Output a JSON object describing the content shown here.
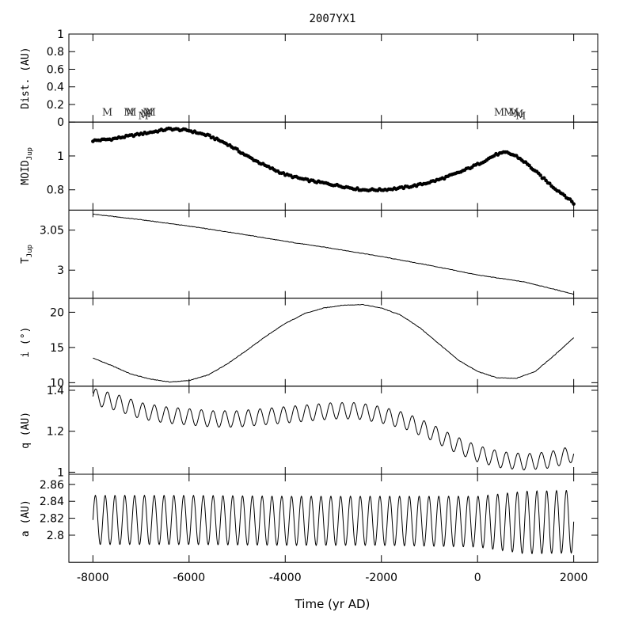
{
  "chart_data": {
    "type": "line",
    "title": "2007YX1",
    "xlabel": "Time (yr AD)",
    "xlim": [
      -8500,
      2500
    ],
    "x_ticks": [
      -8000,
      -6000,
      -4000,
      -2000,
      0,
      2000
    ],
    "x_tick_labels": [
      "-8000",
      "-6000",
      "-4000",
      "-2000",
      "0",
      "2000"
    ],
    "panels": [
      {
        "id": "dist",
        "ylabel": "Dist. (AU)",
        "ylim": [
          0,
          1
        ],
        "y_ticks": [
          0,
          0.2,
          0.4,
          0.6,
          0.8,
          1
        ],
        "y_tick_labels": [
          "0",
          "0.2",
          "0.4",
          "0.6",
          "0.8",
          "1"
        ],
        "marker_label": "M",
        "markers": [
          {
            "x": -7700,
            "y": 0.075
          },
          {
            "x": -7250,
            "y": 0.075
          },
          {
            "x": -7200,
            "y": 0.075
          },
          {
            "x": -6950,
            "y": 0.035
          },
          {
            "x": -6900,
            "y": 0.055
          },
          {
            "x": -6850,
            "y": 0.075
          },
          {
            "x": -6800,
            "y": 0.075
          },
          {
            "x": 450,
            "y": 0.075
          },
          {
            "x": 650,
            "y": 0.075
          },
          {
            "x": 750,
            "y": 0.075
          },
          {
            "x": 850,
            "y": 0.055
          },
          {
            "x": 900,
            "y": 0.035
          }
        ]
      },
      {
        "id": "moid",
        "ylabel": "MOID",
        "ylabel_sub": "Jup",
        "ylim": [
          0.68,
          1.2
        ],
        "y_ticks": [
          0.8,
          1
        ],
        "y_tick_labels": [
          "0.8",
          "1"
        ],
        "style": "dots",
        "x": [
          -8000,
          -7600,
          -7200,
          -6800,
          -6400,
          -6000,
          -5600,
          -5200,
          -4800,
          -4400,
          -4000,
          -3600,
          -3200,
          -2800,
          -2400,
          -2000,
          -1600,
          -1200,
          -800,
          -400,
          0,
          200,
          400,
          600,
          800,
          1000,
          1200,
          1400,
          1600,
          1800,
          2000
        ],
        "y": [
          1.09,
          1.1,
          1.12,
          1.14,
          1.16,
          1.15,
          1.12,
          1.07,
          1.0,
          0.94,
          0.89,
          0.86,
          0.84,
          0.82,
          0.8,
          0.8,
          0.81,
          0.83,
          0.86,
          0.9,
          0.95,
          0.98,
          1.01,
          1.02,
          1.0,
          0.96,
          0.91,
          0.86,
          0.81,
          0.77,
          0.72
        ]
      },
      {
        "id": "tjup",
        "ylabel": "T",
        "ylabel_sub": "Jup",
        "ylim": [
          2.965,
          3.075
        ],
        "y_ticks": [
          3,
          3.05
        ],
        "y_tick_labels": [
          "3",
          "3.05"
        ],
        "style": "line",
        "x": [
          -8000,
          -7000,
          -6000,
          -5000,
          -4000,
          -3000,
          -2000,
          -1000,
          0,
          1000,
          2000
        ],
        "y": [
          3.07,
          3.063,
          3.055,
          3.046,
          3.036,
          3.027,
          3.017,
          3.006,
          2.994,
          2.985,
          2.97
        ]
      },
      {
        "id": "incl",
        "ylabel": "i (°)",
        "ylim": [
          9.5,
          22
        ],
        "y_ticks": [
          10,
          15,
          20
        ],
        "y_tick_labels": [
          "10",
          "15",
          "20"
        ],
        "style": "line",
        "x": [
          -8000,
          -7600,
          -7200,
          -6800,
          -6400,
          -6000,
          -5600,
          -5200,
          -4800,
          -4400,
          -4000,
          -3600,
          -3200,
          -2800,
          -2400,
          -2000,
          -1600,
          -1200,
          -800,
          -400,
          0,
          400,
          800,
          1200,
          1600,
          2000
        ],
        "y": [
          13.5,
          12.4,
          11.2,
          10.5,
          10.1,
          10.3,
          11.1,
          12.7,
          14.6,
          16.6,
          18.4,
          19.8,
          20.6,
          21.0,
          21.1,
          20.6,
          19.6,
          17.8,
          15.5,
          13.2,
          11.6,
          10.7,
          10.6,
          11.6,
          13.9,
          16.4
        ]
      },
      {
        "id": "q",
        "ylabel": "q (AU)",
        "ylim": [
          0.99,
          1.42
        ],
        "y_ticks": [
          1,
          1.2,
          1.4
        ],
        "y_tick_labels": [
          "1",
          "1.2",
          "1.4"
        ],
        "style": "line",
        "x": [
          -8000,
          -7500,
          -7000,
          -6500,
          -6000,
          -5500,
          -5000,
          -4500,
          -4000,
          -3500,
          -3000,
          -2500,
          -2000,
          -1500,
          -1000,
          -500,
          0,
          500,
          1000,
          1500,
          2000
        ],
        "y": [
          1.37,
          1.34,
          1.3,
          1.28,
          1.27,
          1.26,
          1.26,
          1.27,
          1.28,
          1.29,
          1.3,
          1.3,
          1.28,
          1.25,
          1.2,
          1.14,
          1.09,
          1.06,
          1.05,
          1.06,
          1.09
        ],
        "amplitude": [
          0.04,
          0.04,
          0.04,
          0.04,
          0.04,
          0.04,
          0.04,
          0.04,
          0.04,
          0.04,
          0.04,
          0.04,
          0.04,
          0.04,
          0.04,
          0.04,
          0.04,
          0.04,
          0.04,
          0.04,
          0.04
        ]
      },
      {
        "id": "a",
        "ylabel": "a (AU)",
        "ylim": [
          2.768,
          2.872
        ],
        "y_ticks": [
          2.8,
          2.82,
          2.84,
          2.86
        ],
        "y_tick_labels": [
          "2.8",
          "2.82",
          "2.84",
          "2.86"
        ],
        "style": "line",
        "x": [
          -8000,
          -6000,
          -4000,
          -2000,
          0,
          1000,
          2000
        ],
        "y": [
          2.818,
          2.818,
          2.817,
          2.817,
          2.816,
          2.815,
          2.816
        ],
        "amplitude": [
          0.029,
          0.029,
          0.029,
          0.029,
          0.03,
          0.037,
          0.037
        ]
      }
    ]
  }
}
